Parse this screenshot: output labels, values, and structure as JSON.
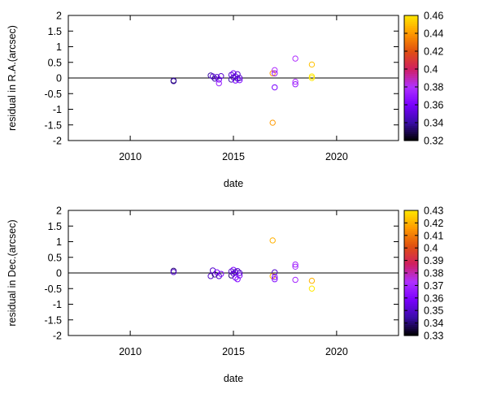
{
  "chart_data": [
    {
      "type": "scatter",
      "xlabel": "date",
      "ylabel": "residual in R.A.(arcsec)",
      "xlim": [
        2007.0,
        2023.0
      ],
      "ylim": [
        -2,
        2
      ],
      "x_ticks": [
        "2010",
        "2015",
        "2020"
      ],
      "y_ticks": [
        "2",
        "1.5",
        "1",
        "0.5",
        "0",
        "-0.5",
        "-1",
        "-1.5",
        "-2"
      ],
      "zero_line": true,
      "colorbar": {
        "range": [
          0.32,
          0.46
        ],
        "ticks": [
          "0.46",
          "0.44",
          "0.42",
          "0.4",
          "0.38",
          "0.36",
          "0.34",
          "0.32"
        ],
        "colors": [
          "#000000",
          "#3a0da8",
          "#7a00ff",
          "#b030ff",
          "#d02060",
          "#e05010",
          "#ff9a00",
          "#ffe800"
        ]
      },
      "points": [
        {
          "x": 2012.1,
          "y": -0.08,
          "c": 0.33
        },
        {
          "x": 2012.1,
          "y": -0.1,
          "c": 0.34
        },
        {
          "x": 2013.9,
          "y": 0.08,
          "c": 0.34
        },
        {
          "x": 2014.0,
          "y": 0.05,
          "c": 0.35
        },
        {
          "x": 2014.1,
          "y": -0.02,
          "c": 0.34
        },
        {
          "x": 2014.2,
          "y": 0.03,
          "c": 0.35
        },
        {
          "x": 2014.3,
          "y": -0.05,
          "c": 0.36
        },
        {
          "x": 2014.3,
          "y": -0.17,
          "c": 0.37
        },
        {
          "x": 2014.4,
          "y": 0.06,
          "c": 0.35
        },
        {
          "x": 2014.9,
          "y": 0.1,
          "c": 0.35
        },
        {
          "x": 2014.9,
          "y": -0.05,
          "c": 0.34
        },
        {
          "x": 2015.0,
          "y": 0.15,
          "c": 0.36
        },
        {
          "x": 2015.0,
          "y": 0.02,
          "c": 0.35
        },
        {
          "x": 2015.1,
          "y": -0.08,
          "c": 0.36
        },
        {
          "x": 2015.1,
          "y": 0.05,
          "c": 0.35
        },
        {
          "x": 2015.2,
          "y": -0.02,
          "c": 0.34
        },
        {
          "x": 2015.2,
          "y": 0.12,
          "c": 0.35
        },
        {
          "x": 2015.3,
          "y": -0.07,
          "c": 0.36
        },
        {
          "x": 2015.3,
          "y": 0.0,
          "c": 0.35
        },
        {
          "x": 2016.9,
          "y": 0.15,
          "c": 0.44
        },
        {
          "x": 2016.9,
          "y": -1.43,
          "c": 0.44
        },
        {
          "x": 2017.0,
          "y": 0.25,
          "c": 0.38
        },
        {
          "x": 2017.0,
          "y": 0.15,
          "c": 0.37
        },
        {
          "x": 2017.0,
          "y": -0.3,
          "c": 0.36
        },
        {
          "x": 2018.0,
          "y": 0.62,
          "c": 0.38
        },
        {
          "x": 2018.0,
          "y": -0.12,
          "c": 0.38
        },
        {
          "x": 2018.0,
          "y": -0.2,
          "c": 0.37
        },
        {
          "x": 2018.8,
          "y": 0.43,
          "c": 0.45
        },
        {
          "x": 2018.8,
          "y": 0.05,
          "c": 0.46
        },
        {
          "x": 2018.8,
          "y": 0.0,
          "c": 0.46
        }
      ]
    },
    {
      "type": "scatter",
      "xlabel": "date",
      "ylabel": "residual in Dec.(arcsec)",
      "xlim": [
        2007.0,
        2023.0
      ],
      "ylim": [
        -2,
        2
      ],
      "x_ticks": [
        "2010",
        "2015",
        "2020"
      ],
      "y_ticks": [
        "2",
        "1.5",
        "1",
        "0.5",
        "0",
        "-0.5",
        "-1",
        "-1.5",
        "-2"
      ],
      "zero_line": true,
      "colorbar": {
        "range": [
          0.33,
          0.43
        ],
        "ticks": [
          "0.43",
          "0.42",
          "0.41",
          "0.4",
          "0.39",
          "0.38",
          "0.37",
          "0.36",
          "0.35",
          "0.34",
          "0.33"
        ],
        "colors": [
          "#000000",
          "#3a0da8",
          "#7a00ff",
          "#b030ff",
          "#d02060",
          "#e05010",
          "#ff9a00",
          "#ffe800"
        ]
      },
      "points": [
        {
          "x": 2012.1,
          "y": 0.07,
          "c": 0.34
        },
        {
          "x": 2012.1,
          "y": 0.03,
          "c": 0.35
        },
        {
          "x": 2013.9,
          "y": -0.1,
          "c": 0.35
        },
        {
          "x": 2014.0,
          "y": 0.08,
          "c": 0.35
        },
        {
          "x": 2014.1,
          "y": -0.05,
          "c": 0.34
        },
        {
          "x": 2014.2,
          "y": 0.02,
          "c": 0.36
        },
        {
          "x": 2014.3,
          "y": -0.1,
          "c": 0.35
        },
        {
          "x": 2014.4,
          "y": -0.03,
          "c": 0.36
        },
        {
          "x": 2014.9,
          "y": 0.05,
          "c": 0.35
        },
        {
          "x": 2014.9,
          "y": -0.08,
          "c": 0.34
        },
        {
          "x": 2015.0,
          "y": 0.1,
          "c": 0.36
        },
        {
          "x": 2015.0,
          "y": -0.02,
          "c": 0.35
        },
        {
          "x": 2015.1,
          "y": -0.15,
          "c": 0.36
        },
        {
          "x": 2015.1,
          "y": 0.03,
          "c": 0.35
        },
        {
          "x": 2015.2,
          "y": -0.2,
          "c": 0.36
        },
        {
          "x": 2015.2,
          "y": 0.06,
          "c": 0.35
        },
        {
          "x": 2015.3,
          "y": -0.08,
          "c": 0.36
        },
        {
          "x": 2015.3,
          "y": 0.0,
          "c": 0.35
        },
        {
          "x": 2016.9,
          "y": 1.04,
          "c": 0.42
        },
        {
          "x": 2016.9,
          "y": -0.1,
          "c": 0.42
        },
        {
          "x": 2017.0,
          "y": 0.02,
          "c": 0.35
        },
        {
          "x": 2017.0,
          "y": -0.13,
          "c": 0.36
        },
        {
          "x": 2017.0,
          "y": -0.2,
          "c": 0.36
        },
        {
          "x": 2018.0,
          "y": 0.27,
          "c": 0.37
        },
        {
          "x": 2018.0,
          "y": 0.2,
          "c": 0.37
        },
        {
          "x": 2018.0,
          "y": -0.22,
          "c": 0.37
        },
        {
          "x": 2018.8,
          "y": -0.25,
          "c": 0.42
        },
        {
          "x": 2018.8,
          "y": -0.5,
          "c": 0.43
        }
      ]
    }
  ]
}
